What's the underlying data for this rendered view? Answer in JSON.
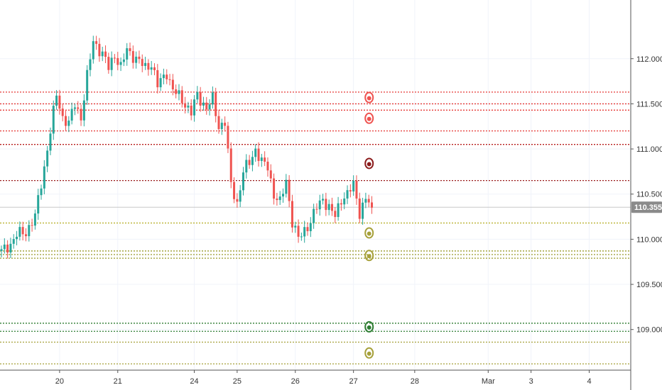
{
  "chart_data": {
    "type": "candlestick",
    "title": "",
    "xlabel": "",
    "ylabel": "",
    "ylim": [
      108.55,
      112.65
    ],
    "y_ticks": [
      "112.000",
      "111.500",
      "111.000",
      "110.500",
      "110.000",
      "109.500",
      "109.000"
    ],
    "y_tick_values": [
      112.0,
      111.5,
      111.0,
      110.5,
      110.0,
      109.5,
      109.0
    ],
    "x_ticks": [
      "20",
      "21",
      "24",
      "25",
      "26",
      "27",
      "28",
      "Mar",
      "3",
      "4"
    ],
    "x_tick_index": [
      19,
      38,
      63,
      77,
      96,
      115,
      135,
      159,
      173,
      192
    ],
    "last_price": "110.355",
    "last_price_value": 110.355,
    "colors": {
      "up": "#26a69a",
      "down": "#ef5350",
      "grid": "#f0f3fa",
      "axis": "#555555",
      "price_label_bg": "#8a8a8a"
    },
    "levels": [
      {
        "value": 111.63,
        "color": "#e53935"
      },
      {
        "value": 111.5,
        "color": "#e53935"
      },
      {
        "value": 111.43,
        "color": "#e53935"
      },
      {
        "value": 111.2,
        "color": "#e53935"
      },
      {
        "value": 111.05,
        "color": "#b71c1c"
      },
      {
        "value": 110.65,
        "color": "#9a1b1b"
      },
      {
        "value": 110.18,
        "color": "#b4ad22"
      },
      {
        "value": 109.87,
        "color": "#9a9a2a"
      },
      {
        "value": 109.83,
        "color": "#9a9a2a"
      },
      {
        "value": 109.79,
        "color": "#9a9a2a"
      },
      {
        "value": 109.07,
        "color": "#2e7d32"
      },
      {
        "value": 108.98,
        "color": "#2e7d32"
      },
      {
        "value": 108.86,
        "color": "#a6a03a"
      },
      {
        "value": 108.62,
        "color": "#a6a03a"
      }
    ],
    "markers": [
      {
        "index": 120,
        "value": 111.57,
        "color": "#ef5350"
      },
      {
        "index": 120,
        "value": 111.34,
        "color": "#ef5350"
      },
      {
        "index": 120,
        "value": 110.84,
        "color": "#8b1c1c"
      },
      {
        "index": 120,
        "value": 110.07,
        "color": "#a6a03a"
      },
      {
        "index": 120,
        "value": 109.82,
        "color": "#a6a03a"
      },
      {
        "index": 120,
        "value": 109.03,
        "color": "#2e7d32"
      },
      {
        "index": 120,
        "value": 108.74,
        "color": "#a6a03a"
      }
    ],
    "waypoints": [
      [
        0,
        109.86
      ],
      [
        3,
        109.95
      ],
      [
        5,
        110.05
      ],
      [
        8,
        110.08
      ],
      [
        11,
        110.25
      ],
      [
        14,
        110.8
      ],
      [
        16,
        111.2
      ],
      [
        18,
        111.6
      ],
      [
        20,
        111.35
      ],
      [
        22,
        111.28
      ],
      [
        24,
        111.5
      ],
      [
        26,
        111.35
      ],
      [
        28,
        111.8
      ],
      [
        30,
        112.2
      ],
      [
        33,
        112.05
      ],
      [
        35,
        111.9
      ],
      [
        37,
        112.05
      ],
      [
        39,
        111.9
      ],
      [
        41,
        112.1
      ],
      [
        44,
        112.0
      ],
      [
        47,
        111.9
      ],
      [
        49,
        111.95
      ],
      [
        51,
        111.7
      ],
      [
        54,
        111.85
      ],
      [
        56,
        111.65
      ],
      [
        59,
        111.55
      ],
      [
        62,
        111.4
      ],
      [
        64,
        111.6
      ],
      [
        67,
        111.45
      ],
      [
        69,
        111.55
      ],
      [
        71,
        111.25
      ],
      [
        73,
        111.3
      ],
      [
        75,
        110.6
      ],
      [
        77,
        110.4
      ],
      [
        79,
        110.75
      ],
      [
        81,
        110.85
      ],
      [
        83,
        111.0
      ],
      [
        85,
        110.85
      ],
      [
        87,
        110.8
      ],
      [
        89,
        110.5
      ],
      [
        91,
        110.4
      ],
      [
        93,
        110.65
      ],
      [
        95,
        110.2
      ],
      [
        97,
        110.0
      ],
      [
        99,
        110.1
      ],
      [
        101,
        110.2
      ],
      [
        103,
        110.35
      ],
      [
        105,
        110.45
      ],
      [
        107,
        110.35
      ],
      [
        109,
        110.25
      ],
      [
        111,
        110.45
      ],
      [
        113,
        110.5
      ],
      [
        115,
        110.6
      ],
      [
        117,
        110.3
      ],
      [
        119,
        110.45
      ],
      [
        121,
        110.35
      ]
    ]
  }
}
